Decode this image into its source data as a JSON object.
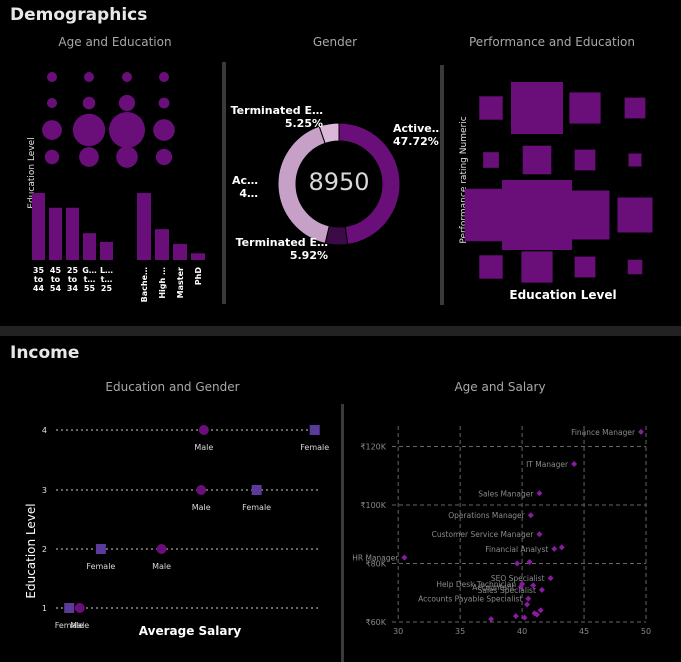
{
  "sections": {
    "demographics": "Demographics",
    "income": "Income"
  },
  "subtitles": {
    "age_education": "Age and Education",
    "gender": "Gender",
    "performance_education": "Performance and Education",
    "education_gender": "Education and Gender",
    "age_salary": "Age and Salary"
  },
  "colors": {
    "accent": "#6a0f7a",
    "accent_light": "#c7a0c8",
    "female_square": "#5a3a9a",
    "panel_bg": "#000000",
    "gap": "#222222"
  },
  "age_education": {
    "ylabel": "Education Level",
    "age_bars": {
      "categories": [
        "35\nto\n44",
        "45\nto\n54",
        "25\nto\n34",
        "G…\nt…\n55",
        "L…\nt…\n25"
      ],
      "values": [
        100,
        78,
        78,
        40,
        27
      ]
    },
    "edu_bars": {
      "categories": [
        "Bache…",
        "High …",
        "Master",
        "PhD"
      ],
      "values": [
        100,
        46,
        24,
        10
      ]
    },
    "bubbles": [
      [
        0.1,
        0.2,
        0.2,
        0.2
      ],
      [
        0.25,
        0.35,
        0.45,
        0.3
      ],
      [
        0.55,
        0.9,
        1.0,
        0.6
      ],
      [
        0.4,
        0.55,
        0.6,
        0.45
      ]
    ]
  },
  "gender": {
    "center_value": "8950",
    "slices": [
      {
        "label": "Active…",
        "pct": "47.72%",
        "value": 47.72,
        "color": "#6a0f7a"
      },
      {
        "label": "Terminated E…",
        "pct": "5.92%",
        "value": 5.92,
        "color": "#3d0a48"
      },
      {
        "label": "Ac…",
        "pct": "4…",
        "value": 41.11,
        "color": "#c7a0c8"
      },
      {
        "label": "Terminated E…",
        "pct": "5.25%",
        "value": 5.25,
        "color": "#d9b8da"
      }
    ]
  },
  "performance_education": {
    "ylabel": "Performance rating Numeric",
    "xlabel": "Education Level",
    "squares": [
      [
        0.45,
        1.0,
        0.6,
        0.4
      ],
      [
        0.3,
        0.55,
        0.4,
        0.25
      ],
      [
        0.75,
        1.0,
        0.7,
        0.5
      ],
      [
        0.45,
        0.6,
        0.4,
        0.28
      ]
    ]
  },
  "chart_data": [
    {
      "type": "scatter",
      "title": "Education and Gender",
      "xlabel": "Average Salary",
      "ylabel": "Education Level",
      "categories": [
        "1",
        "2",
        "3",
        "4"
      ],
      "series": [
        {
          "name": "Male",
          "values": [
            {
              "edu": 1,
              "x": 0.09
            },
            {
              "edu": 2,
              "x": 0.4
            },
            {
              "edu": 3,
              "x": 0.55
            },
            {
              "edu": 4,
              "x": 0.56
            }
          ]
        },
        {
          "name": "Female",
          "values": [
            {
              "edu": 1,
              "x": 0.05
            },
            {
              "edu": 2,
              "x": 0.17
            },
            {
              "edu": 3,
              "x": 0.76
            },
            {
              "edu": 4,
              "x": 0.98
            }
          ]
        }
      ]
    },
    {
      "type": "scatter",
      "title": "Age and Salary",
      "x_ticks": [
        "30",
        "35",
        "40",
        "45",
        "50"
      ],
      "y_ticks": [
        "₹60K",
        "₹80K",
        "₹100K",
        "₹120K"
      ],
      "xlim": [
        29.5,
        50
      ],
      "ylim": [
        60000,
        127000
      ],
      "points": [
        {
          "label": "Finance Manager",
          "x": 49.6,
          "y": 125000
        },
        {
          "label": "IT Manager",
          "x": 44.2,
          "y": 114000
        },
        {
          "label": "Sales Manager",
          "x": 41.4,
          "y": 104000
        },
        {
          "label": "Operations Manager",
          "x": 40.7,
          "y": 96500
        },
        {
          "label": "Customer Service Manager",
          "x": 41.4,
          "y": 90000
        },
        {
          "label": "HR Manager",
          "x": 30.5,
          "y": 82000
        },
        {
          "label": "Financial Analyst",
          "x": 42.6,
          "y": 85000
        },
        {
          "label": "SEO Specialist",
          "x": 42.3,
          "y": 75000
        },
        {
          "label": "Accountant",
          "x": 39.9,
          "y": 72000
        },
        {
          "label": "Help Desk Technician",
          "x": 40.0,
          "y": 73000
        },
        {
          "label": "Sales Specialist",
          "x": 41.6,
          "y": 71000
        },
        {
          "label": "Accounts Payable Specialist",
          "x": 40.5,
          "y": 68000
        },
        {
          "label": "",
          "x": 39.5,
          "y": 62000
        },
        {
          "label": "",
          "x": 37.5,
          "y": 61000
        },
        {
          "label": "",
          "x": 40.2,
          "y": 61500
        },
        {
          "label": "",
          "x": 41.0,
          "y": 63000
        },
        {
          "label": "",
          "x": 40.4,
          "y": 66000
        },
        {
          "label": "",
          "x": 41.5,
          "y": 64000
        },
        {
          "label": "",
          "x": 39.6,
          "y": 80000
        },
        {
          "label": "",
          "x": 40.6,
          "y": 80500
        },
        {
          "label": "",
          "x": 43.2,
          "y": 85500
        },
        {
          "label": "",
          "x": 40.9,
          "y": 72500
        },
        {
          "label": "",
          "x": 41.2,
          "y": 62500
        }
      ]
    }
  ]
}
